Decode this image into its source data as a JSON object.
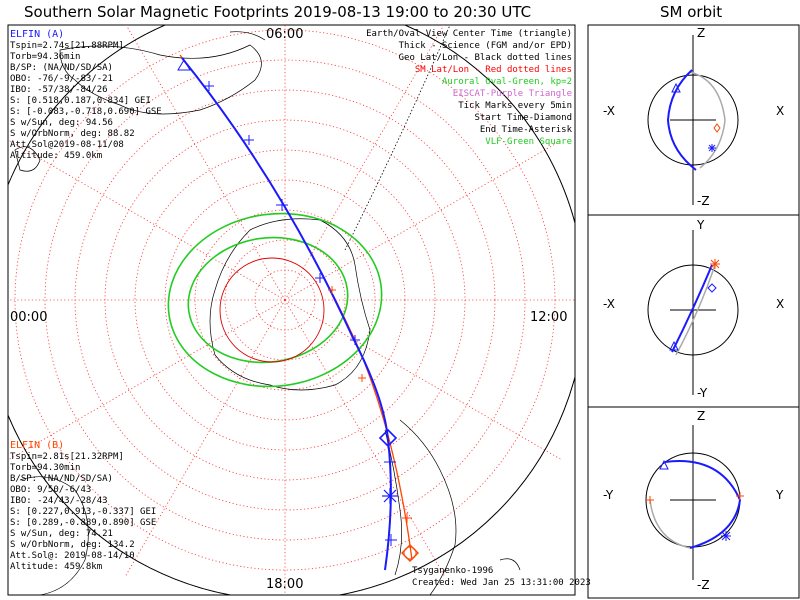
{
  "title": "Southern Solar Magnetic Footprints 2019-08-13 19:00 to 20:30 UTC",
  "orbit_title": "SM orbit",
  "map": {
    "clock_labels": {
      "top": "06:00",
      "left": "00:00",
      "right": "12:00",
      "bottom": "18:00"
    },
    "credit": "Tsyganenko-1996",
    "created": "Created: Wed Jan 25 13:31:00 2023"
  },
  "elfin_a": {
    "name": "ELFIN (A)",
    "color": "#1a1aff",
    "lines": [
      "Tspin=2.74s[21.88RPM]",
      "Torb=94.36min",
      "B/SP: (NA/ND/SD/SA)",
      "OBO: -76/-9/-83/-21",
      "IBO: -57/38/-84/26",
      "S: [0.518,0.187,0.834] GEI",
      "S: [-0.083,-0.718,0.690] GSE",
      "S w/Sun, deg: 94.56",
      "S w/OrbNorm, deg: 88.82",
      "Att.Sol@2019-08-11/08",
      "Altitude: 459.0km"
    ]
  },
  "elfin_b": {
    "name": "ELFIN (B)",
    "color": "#ff4500",
    "lines": [
      "Tspin=2.81s[21.32RPM]",
      "Torb=94.30min",
      "B/SP: (NA/ND/SD/SA)",
      "OBO: 9/50/-6/43",
      "IBO: -24/43/-28/43",
      "S: [0.227,0.913,-0.337] GEI",
      "S: [0.289,-0.889,0.890] GSE",
      "S w/Sun, deg: 74.21",
      "S w/OrbNorm, deg: 134.2",
      "Att.Sol@: 2019-08-14/10",
      "Altitude: 459.8km"
    ]
  },
  "legend": [
    {
      "text": "Earth/Oval View Center Time (triangle)",
      "color": "#000000"
    },
    {
      "text": "Thick - Science (FGM and/or EPD)",
      "color": "#000000"
    },
    {
      "text": "Geo Lat/Lon - Black dotted lines",
      "color": "#000000"
    },
    {
      "text": "SM Lat/Lon - Red dotted lines",
      "color": "#ff0000"
    },
    {
      "text": "Auroral Oval-Green, kp=2",
      "color": "#22cc22"
    },
    {
      "text": "EISCAT-Purple Triangle",
      "color": "#cc66cc"
    },
    {
      "text": "Tick Marks every 5min",
      "color": "#000000"
    },
    {
      "text": "Start Time-Diamond",
      "color": "#000000"
    },
    {
      "text": "End Time-Asterisk",
      "color": "#000000"
    },
    {
      "text": "VLF-Green Square",
      "color": "#22cc22"
    }
  ],
  "orbit_panels": [
    {
      "top": "Z",
      "bottom": "-Z",
      "left": "-X",
      "right": "X"
    },
    {
      "top": "Y",
      "bottom": "-Y",
      "left": "-X",
      "right": "X"
    },
    {
      "top": "Z",
      "bottom": "-Z",
      "left": "-Y",
      "right": "Y"
    }
  ]
}
